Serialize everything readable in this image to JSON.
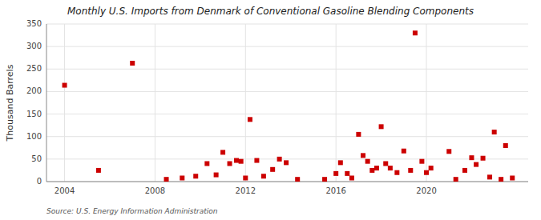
{
  "chart_data": {
    "type": "scatter",
    "title": "Monthly U.S. Imports from Denmark of Conventional Gasoline Blending Components",
    "y_label": "Thousand Barrels",
    "source": "Source: U.S. Energy Information Administration",
    "color": "#cc0000",
    "marker": "square",
    "grid": true,
    "xlim": [
      2003.2,
      2024.5
    ],
    "ylim": [
      0,
      350
    ],
    "xticks": [
      2004,
      2008,
      2012,
      2016,
      2020
    ],
    "yticks": [
      0,
      50,
      100,
      150,
      200,
      250,
      300,
      350
    ],
    "x": [
      2004.0,
      2005.5,
      2007.0,
      2008.5,
      2009.2,
      2009.8,
      2010.3,
      2010.7,
      2011.0,
      2011.3,
      2011.6,
      2011.8,
      2012.0,
      2012.2,
      2012.5,
      2012.8,
      2013.2,
      2013.5,
      2013.8,
      2014.3,
      2015.5,
      2016.0,
      2016.2,
      2016.5,
      2016.7,
      2017.0,
      2017.2,
      2017.4,
      2017.6,
      2017.8,
      2018.0,
      2018.2,
      2018.4,
      2018.7,
      2019.0,
      2019.3,
      2019.5,
      2019.8,
      2020.0,
      2020.2,
      2021.0,
      2021.3,
      2021.7,
      2022.0,
      2022.2,
      2022.5,
      2022.8,
      2023.0,
      2023.3,
      2023.5,
      2023.8
    ],
    "values": [
      214,
      25,
      263,
      5,
      8,
      12,
      40,
      15,
      65,
      40,
      47,
      45,
      8,
      138,
      47,
      12,
      27,
      50,
      42,
      5,
      5,
      18,
      42,
      18,
      8,
      105,
      58,
      45,
      25,
      30,
      122,
      40,
      30,
      20,
      68,
      25,
      330,
      45,
      20,
      30,
      67,
      5,
      25,
      53,
      38,
      52,
      10,
      110,
      5,
      80,
      8
    ]
  }
}
